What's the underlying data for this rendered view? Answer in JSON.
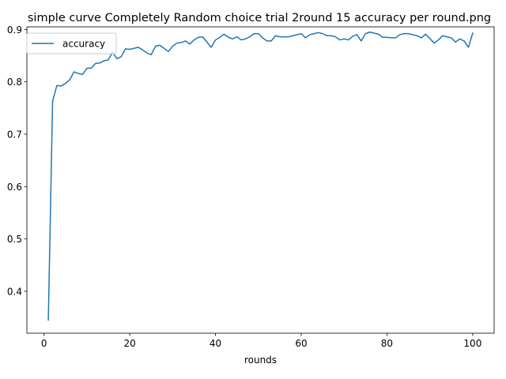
{
  "chart_data": {
    "type": "line",
    "title": "simple curve Completely Random choice trial 2round 15 accuracy per round.png",
    "xlabel": "rounds",
    "ylabel": "",
    "xlim": [
      -4,
      105
    ],
    "ylim": [
      0.32,
      0.905
    ],
    "xticks": [
      0,
      20,
      40,
      60,
      80,
      100
    ],
    "yticks": [
      0.4,
      0.5,
      0.6,
      0.7,
      0.8,
      0.9
    ],
    "ytick_labels": [
      "0.4",
      "0.5",
      "0.6",
      "0.7",
      "0.8",
      "0.9"
    ],
    "legend_position": "upper-left",
    "grid": false,
    "series": [
      {
        "name": "accuracy",
        "color": "#1f77b4",
        "x": [
          1,
          2,
          3,
          4,
          5,
          6,
          7,
          8,
          9,
          10,
          11,
          12,
          13,
          14,
          15,
          16,
          17,
          18,
          19,
          20,
          21,
          22,
          23,
          24,
          25,
          26,
          27,
          28,
          29,
          30,
          31,
          32,
          33,
          34,
          35,
          36,
          37,
          38,
          39,
          40,
          41,
          42,
          43,
          44,
          45,
          46,
          47,
          48,
          49,
          50,
          51,
          52,
          53,
          54,
          55,
          56,
          57,
          58,
          59,
          60,
          61,
          62,
          63,
          64,
          65,
          66,
          67,
          68,
          69,
          70,
          71,
          72,
          73,
          74,
          75,
          76,
          77,
          78,
          79,
          80,
          81,
          82,
          83,
          84,
          85,
          86,
          87,
          88,
          89,
          90,
          91,
          92,
          93,
          94,
          95,
          96,
          97,
          98,
          99,
          100
        ],
        "values": [
          0.345,
          0.763,
          0.793,
          0.792,
          0.797,
          0.804,
          0.819,
          0.816,
          0.814,
          0.826,
          0.826,
          0.835,
          0.836,
          0.84,
          0.842,
          0.857,
          0.844,
          0.848,
          0.863,
          0.862,
          0.864,
          0.866,
          0.861,
          0.855,
          0.852,
          0.868,
          0.87,
          0.864,
          0.858,
          0.868,
          0.874,
          0.875,
          0.878,
          0.872,
          0.88,
          0.885,
          0.886,
          0.876,
          0.866,
          0.88,
          0.885,
          0.891,
          0.885,
          0.882,
          0.886,
          0.88,
          0.882,
          0.886,
          0.892,
          0.892,
          0.884,
          0.878,
          0.878,
          0.888,
          0.886,
          0.886,
          0.886,
          0.888,
          0.89,
          0.892,
          0.884,
          0.89,
          0.892,
          0.894,
          0.892,
          0.888,
          0.888,
          0.886,
          0.88,
          0.882,
          0.88,
          0.887,
          0.89,
          0.878,
          0.892,
          0.895,
          0.893,
          0.891,
          0.885,
          0.885,
          0.884,
          0.884,
          0.89,
          0.892,
          0.892,
          0.89,
          0.888,
          0.884,
          0.891,
          0.883,
          0.874,
          0.88,
          0.888,
          0.886,
          0.884,
          0.876,
          0.882,
          0.878,
          0.866,
          0.893
        ]
      }
    ]
  }
}
